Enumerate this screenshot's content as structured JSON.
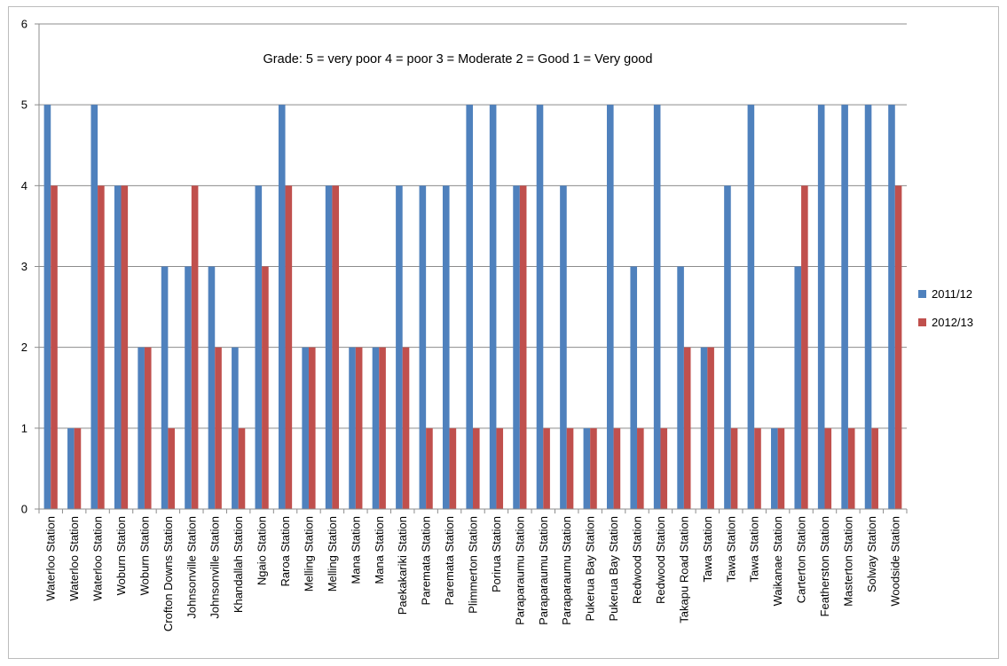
{
  "chart_data": {
    "type": "bar",
    "annotation": "Grade:  5 = very poor  4 = poor   3 = Moderate  2 = Good 1 = Very good",
    "ylim": [
      0,
      6
    ],
    "yticks": [
      0,
      1,
      2,
      3,
      4,
      5,
      6
    ],
    "grid": true,
    "legend_position": "right",
    "categories": [
      "Waterloo Station",
      "Waterloo Station",
      "Waterloo Station",
      "Woburn Station",
      "Woburn Station",
      "Crofton Downs Station",
      "Johnsonville Station",
      "Johnsonville Station",
      "Khandallah Station",
      "Ngaio Station",
      "Raroa Station",
      "Melling Station",
      "Melling Station",
      "Mana Station",
      "Mana Station",
      "Paekakariki Station",
      "Paremata Station",
      "Paremata Station",
      "Plimmerton Station",
      "Porirua Station",
      "Paraparaumu Station",
      "Paraparaumu Station",
      "Paraparaumu Station",
      "Pukerua Bay Station",
      "Pukerua Bay Station",
      "Redwood Station",
      "Redwood Station",
      "Takapu Road Station",
      "Tawa Station",
      "Tawa Station",
      "Tawa Station",
      "Waikanae Station",
      "Carterton Station",
      "Featherston Station",
      "Masterton Station",
      "Solway Station",
      "Woodside Station"
    ],
    "series": [
      {
        "name": "2011/12",
        "color": "#4f81bd",
        "values": [
          5,
          1,
          5,
          4,
          2,
          3,
          3,
          3,
          2,
          4,
          5,
          2,
          4,
          2,
          2,
          4,
          4,
          4,
          5,
          5,
          4,
          5,
          4,
          1,
          5,
          3,
          5,
          3,
          2,
          4,
          5,
          1,
          3,
          5,
          5,
          5,
          5
        ]
      },
      {
        "name": "2012/13",
        "color": "#c0504d",
        "values": [
          4,
          1,
          4,
          4,
          2,
          1,
          4,
          2,
          1,
          3,
          4,
          2,
          4,
          2,
          2,
          2,
          1,
          1,
          1,
          1,
          4,
          1,
          1,
          1,
          1,
          1,
          1,
          2,
          2,
          1,
          1,
          1,
          4,
          1,
          1,
          1,
          4
        ]
      }
    ]
  }
}
